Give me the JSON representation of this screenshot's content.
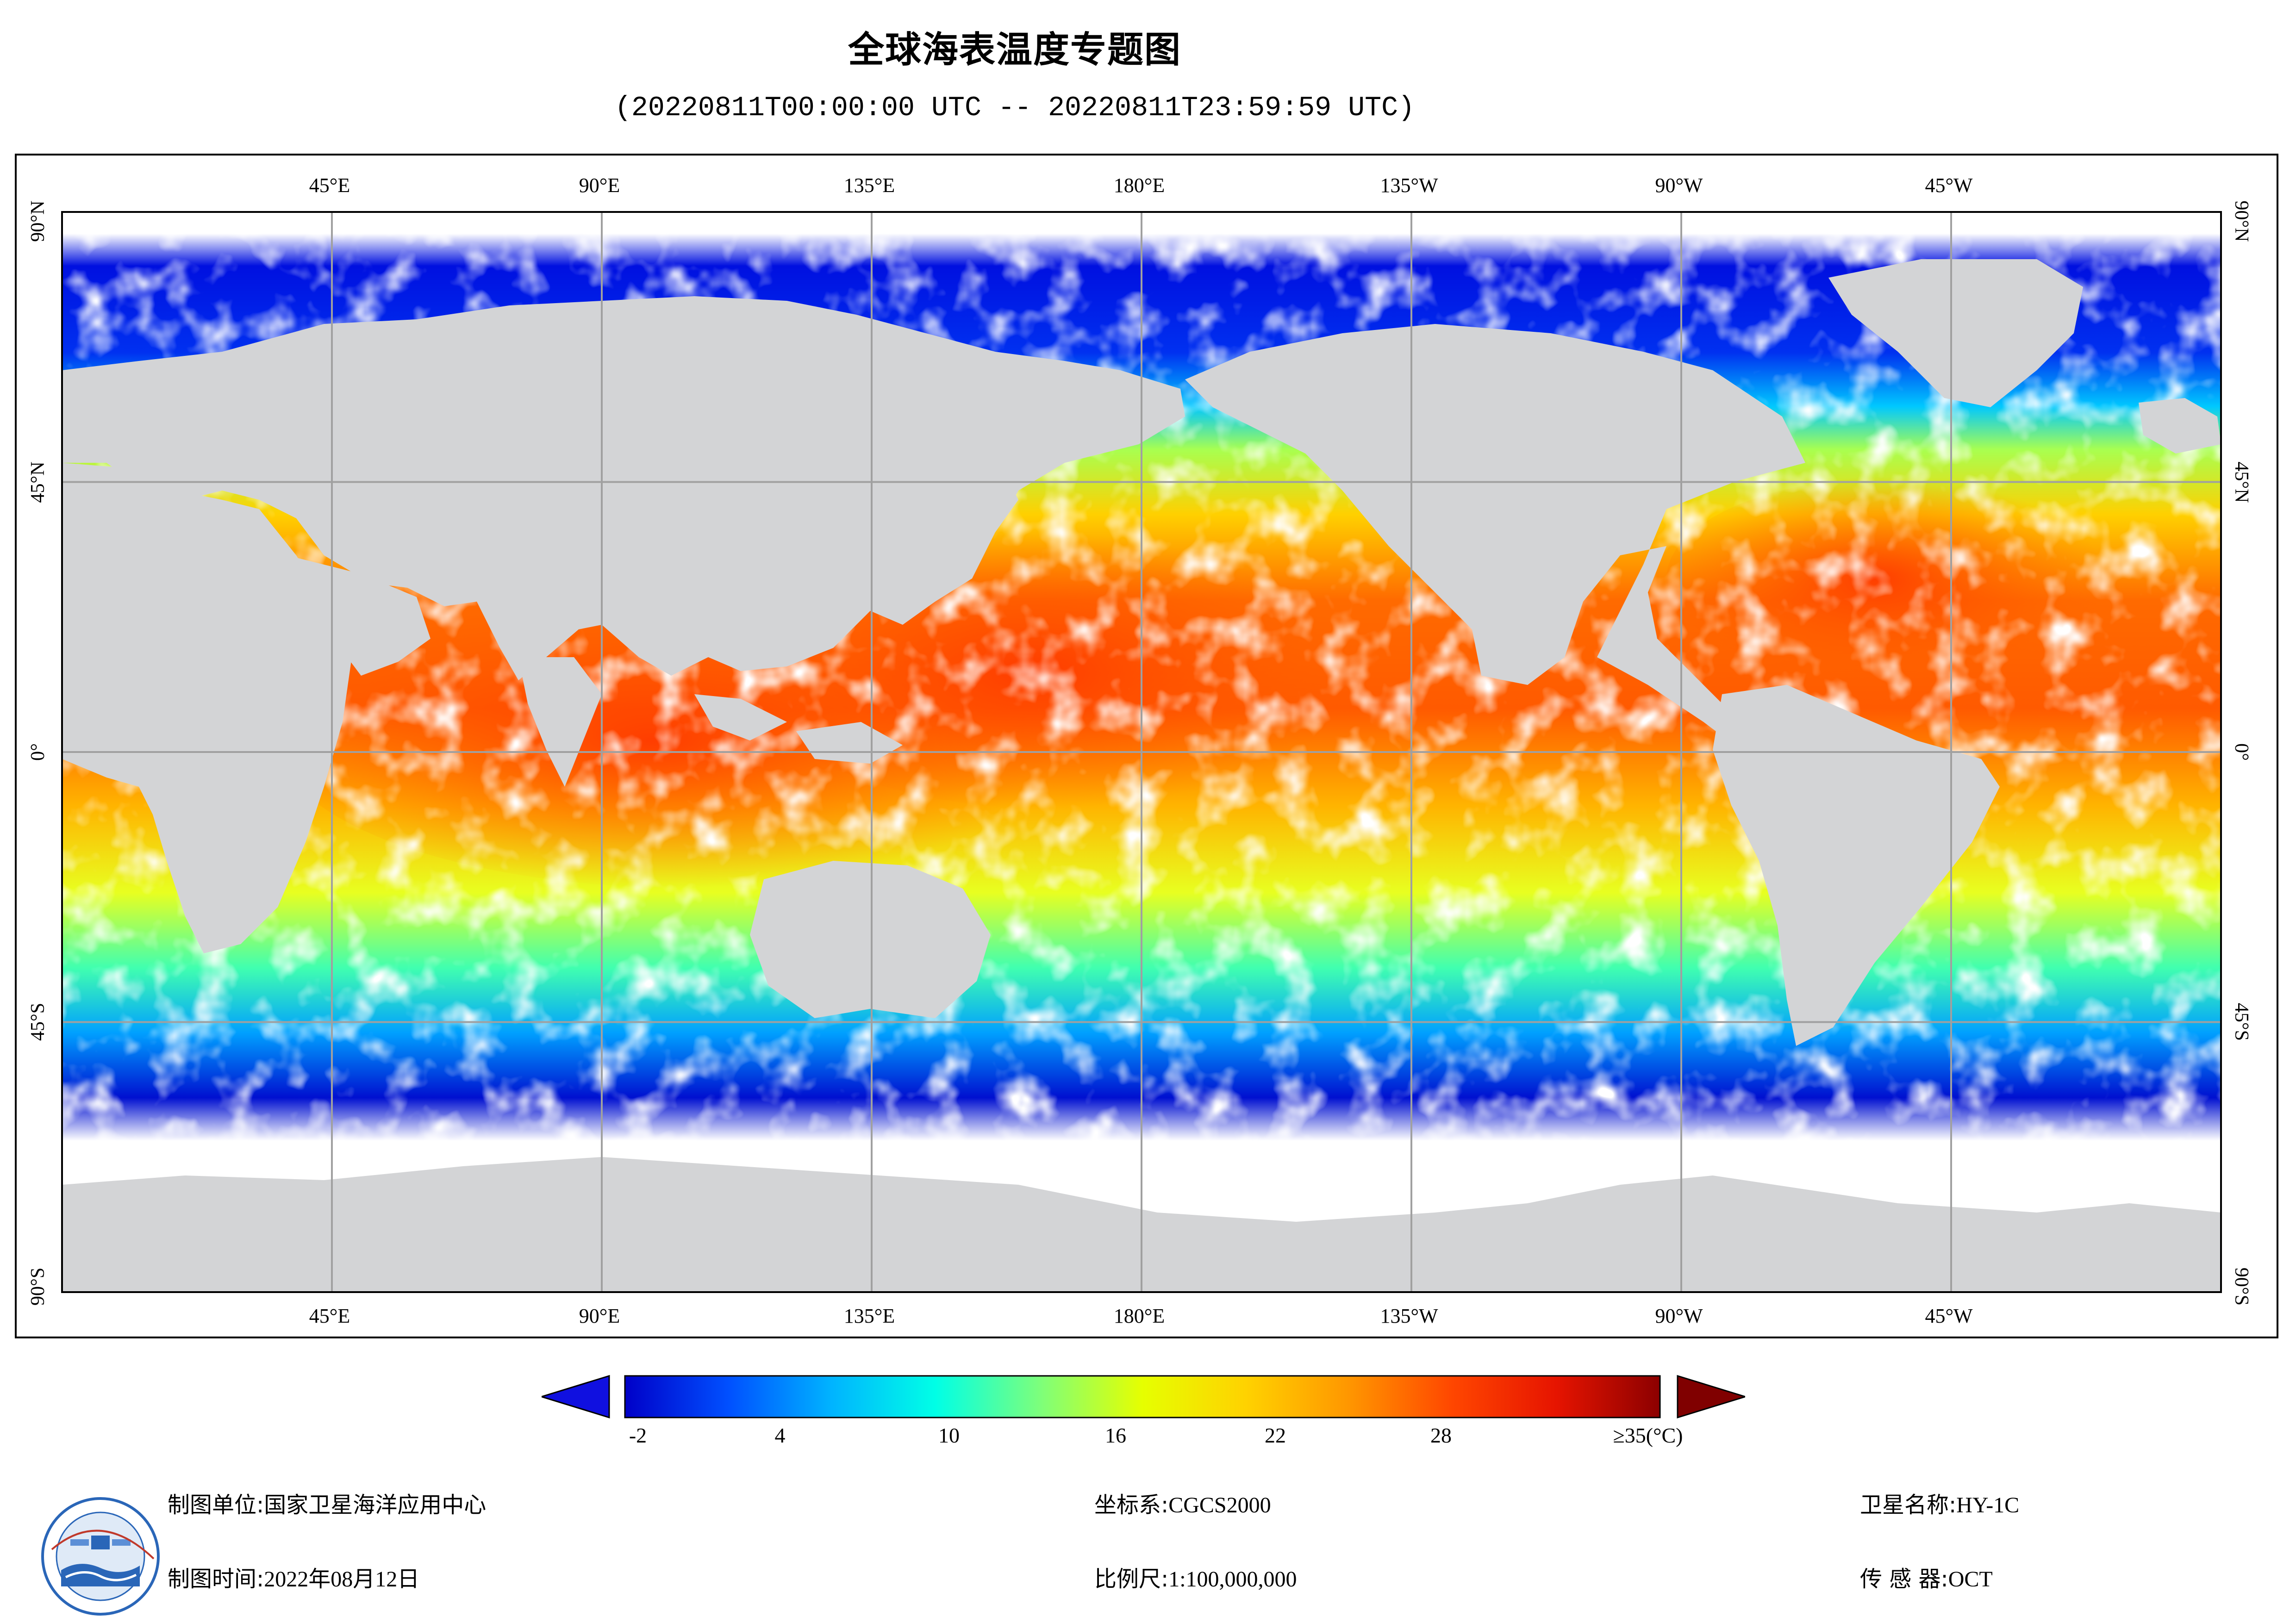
{
  "title": "全球海表温度专题图",
  "subtitle": "(20220811T00:00:00 UTC -- 20220811T23:59:59 UTC)",
  "map": {
    "lon_labels": [
      "45°E",
      "90°E",
      "135°E",
      "180°E",
      "135°W",
      "90°W",
      "45°W"
    ],
    "lat_labels": [
      "90°N",
      "45°N",
      "0°",
      "45°S",
      "90°S"
    ],
    "land_color": "#d3d4d6",
    "nodata_color": "#ffffff",
    "grid_color": "#a0a0a0"
  },
  "legend": {
    "tick_labels": [
      "-2",
      "4",
      "10",
      "16",
      "22",
      "28",
      "≥35(°C)"
    ],
    "min": -2,
    "max": 35,
    "colors": [
      "#0000c8",
      "#0050ff",
      "#00b4ff",
      "#00ffe6",
      "#7cff7c",
      "#e6ff00",
      "#ffd200",
      "#ff9600",
      "#ff4600",
      "#e61400",
      "#8c0000"
    ],
    "under_color": "#1010e0",
    "over_color": "#800000"
  },
  "footer": {
    "org_label": "制图单位:",
    "org_value": "国家卫星海洋应用中心",
    "date_label": "制图时间:",
    "date_value": "2022年08月12日",
    "crs_label": "坐标系:",
    "crs_value": "CGCS2000",
    "scale_label": "比例尺:",
    "scale_value": "1:100,000,000",
    "sat_label": "卫星名称:",
    "sat_value": "HY-1C",
    "sensor_label": "传 感 器:",
    "sensor_value": "OCT"
  }
}
